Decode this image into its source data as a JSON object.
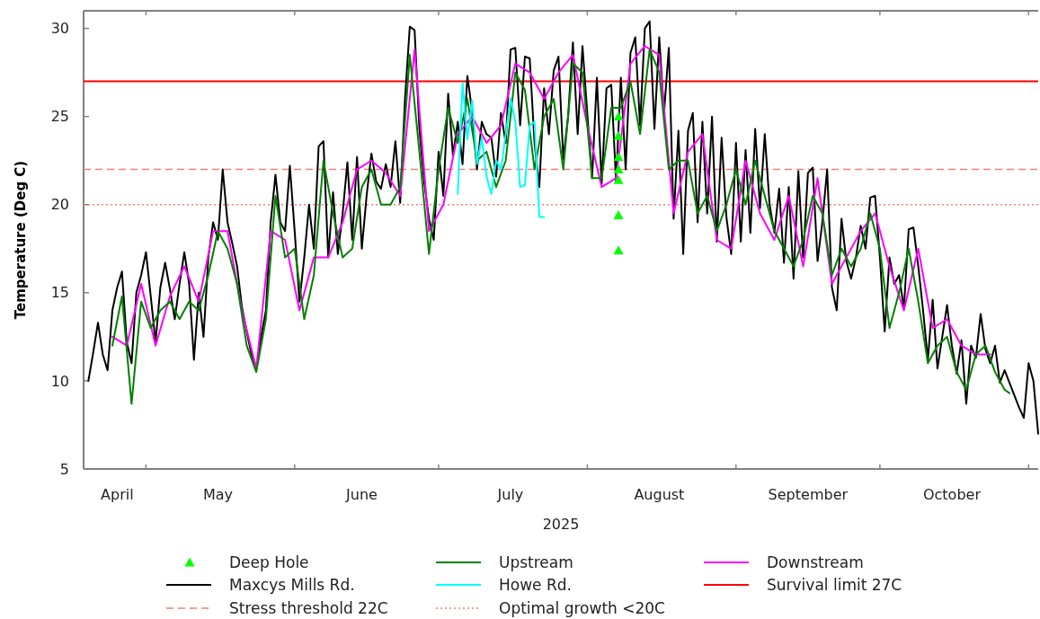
{
  "chart_data": {
    "type": "line",
    "xlabel": "2025",
    "ylabel": "Temperature (Deg C)",
    "xlim": [
      "2025-04-18",
      "2025-11-03"
    ],
    "xticks": [
      {
        "value": "2025-05-01",
        "label": null
      },
      {
        "value": "2025-06-01",
        "label": null
      },
      {
        "value": "2025-07-01",
        "label": null
      },
      {
        "value": "2025-08-01",
        "label": null
      },
      {
        "value": "2025-09-01",
        "label": null
      },
      {
        "value": "2025-10-01",
        "label": null
      },
      {
        "value": "2025-11-01",
        "label": null
      },
      {
        "value": "2025-04-25",
        "label": "April"
      },
      {
        "value": "2025-05-16",
        "label": "May"
      },
      {
        "value": "2025-06-15",
        "label": "June"
      },
      {
        "value": "2025-07-16",
        "label": "July"
      },
      {
        "value": "2025-08-16",
        "label": "August"
      },
      {
        "value": "2025-09-16",
        "label": "September"
      },
      {
        "value": "2025-10-16",
        "label": "October"
      }
    ],
    "ylim": [
      5,
      31
    ],
    "yticks": [
      5,
      10,
      15,
      20,
      25,
      30
    ],
    "grid": false,
    "legend": "bottom",
    "series": [
      {
        "name": "Deep Hole",
        "type": "scatter",
        "marker": "triangle",
        "color": "#00ff00",
        "x": [
          "2025-08-07T12:00",
          "2025-08-07T12:00",
          "2025-08-07T12:00",
          "2025-08-07T12:00",
          "2025-08-07T12:00",
          "2025-08-07T12:00",
          "2025-08-07T12:00"
        ],
        "values": [
          25.0,
          23.9,
          22.7,
          22.0,
          21.4,
          19.4,
          17.4
        ]
      },
      {
        "name": "Upstream",
        "color": "#008000",
        "x": [
          "2025-04-24",
          "2025-04-26",
          "2025-04-28",
          "2025-04-30",
          "2025-05-02",
          "2025-05-04",
          "2025-05-06",
          "2025-05-08",
          "2025-05-10",
          "2025-05-12",
          "2025-05-14",
          "2025-05-16",
          "2025-05-18",
          "2025-05-20",
          "2025-05-22",
          "2025-05-24",
          "2025-05-26",
          "2025-05-28",
          "2025-05-30",
          "2025-06-01",
          "2025-06-03",
          "2025-06-05",
          "2025-06-07",
          "2025-06-09",
          "2025-06-11",
          "2025-06-13",
          "2025-06-15",
          "2025-06-17",
          "2025-06-19",
          "2025-06-21",
          "2025-06-23",
          "2025-06-25",
          "2025-06-27",
          "2025-06-29",
          "2025-07-01",
          "2025-07-03",
          "2025-07-05",
          "2025-07-07",
          "2025-07-09",
          "2025-07-11",
          "2025-07-13",
          "2025-07-15",
          "2025-07-17",
          "2025-07-19",
          "2025-07-21",
          "2025-07-23",
          "2025-07-25",
          "2025-07-27",
          "2025-07-29",
          "2025-07-31",
          "2025-08-02",
          "2025-08-04",
          "2025-08-06",
          "2025-08-08",
          "2025-08-10",
          "2025-08-12",
          "2025-08-14",
          "2025-08-16",
          "2025-08-18",
          "2025-08-20",
          "2025-08-22",
          "2025-08-24",
          "2025-08-26",
          "2025-08-28",
          "2025-08-30",
          "2025-09-01",
          "2025-09-03",
          "2025-09-05",
          "2025-09-07",
          "2025-09-09",
          "2025-09-11",
          "2025-09-13",
          "2025-09-15",
          "2025-09-17",
          "2025-09-19",
          "2025-09-21",
          "2025-09-23",
          "2025-09-25",
          "2025-09-27",
          "2025-09-29",
          "2025-10-01",
          "2025-10-03",
          "2025-10-05",
          "2025-10-07",
          "2025-10-09",
          "2025-10-11",
          "2025-10-13",
          "2025-10-15",
          "2025-10-17",
          "2025-10-19",
          "2025-10-21",
          "2025-10-23",
          "2025-10-25",
          "2025-10-27",
          "2025-10-28"
        ],
        "values": [
          12.0,
          14.8,
          8.7,
          14.5,
          13.0,
          14.0,
          14.5,
          13.5,
          14.5,
          14.0,
          16.0,
          18.5,
          17.5,
          15.5,
          12.0,
          10.5,
          13.5,
          20.5,
          17.0,
          17.5,
          13.5,
          16.0,
          22.5,
          19.5,
          17.0,
          17.5,
          21.0,
          22.0,
          20.0,
          20.0,
          21.0,
          28.5,
          23.0,
          17.2,
          22.0,
          25.5,
          23.5,
          26.0,
          22.5,
          23.0,
          21.0,
          22.5,
          27.5,
          26.5,
          22.0,
          25.0,
          26.0,
          22.0,
          28.0,
          27.5,
          21.5,
          21.5,
          25.5,
          25.5,
          27.0,
          24.0,
          28.8,
          27.5,
          22.0,
          22.5,
          22.5,
          19.5,
          20.5,
          18.5,
          20.0,
          22.0,
          20.0,
          22.5,
          20.5,
          18.5,
          17.5,
          16.5,
          18.0,
          20.5,
          19.5,
          16.0,
          17.5,
          16.5,
          17.5,
          19.5,
          17.5,
          13.0,
          15.0,
          17.5,
          14.5,
          11.0,
          12.0,
          12.5,
          10.5,
          9.5,
          11.5,
          12.0,
          10.5,
          9.5,
          9.3
        ]
      },
      {
        "name": "Downstream",
        "color": "#ff00ff",
        "x": [
          "2025-04-24",
          "2025-04-27",
          "2025-04-30",
          "2025-05-03",
          "2025-05-06",
          "2025-05-09",
          "2025-05-12",
          "2025-05-15",
          "2025-05-18",
          "2025-05-21",
          "2025-05-24",
          "2025-05-27",
          "2025-05-30",
          "2025-06-02",
          "2025-06-05",
          "2025-06-08",
          "2025-06-11",
          "2025-06-14",
          "2025-06-17",
          "2025-06-20",
          "2025-06-23",
          "2025-06-26",
          "2025-06-29",
          "2025-07-02",
          "2025-07-05",
          "2025-07-08",
          "2025-07-11",
          "2025-07-14",
          "2025-07-17",
          "2025-07-20",
          "2025-07-23",
          "2025-07-26",
          "2025-07-29",
          "2025-08-01",
          "2025-08-04",
          "2025-08-07",
          "2025-08-10",
          "2025-08-13",
          "2025-08-16",
          "2025-08-19",
          "2025-08-22",
          "2025-08-25",
          "2025-08-28",
          "2025-08-31",
          "2025-09-03",
          "2025-09-06",
          "2025-09-09",
          "2025-09-12",
          "2025-09-15",
          "2025-09-18",
          "2025-09-21",
          "2025-09-24",
          "2025-09-27",
          "2025-09-30",
          "2025-10-03",
          "2025-10-06",
          "2025-10-09",
          "2025-10-12",
          "2025-10-15",
          "2025-10-18",
          "2025-10-21",
          "2025-10-24"
        ],
        "values": [
          12.5,
          12.0,
          15.5,
          12.0,
          14.8,
          16.5,
          14.5,
          18.5,
          18.5,
          14.0,
          10.7,
          18.5,
          18.0,
          14.0,
          17.0,
          17.0,
          19.0,
          22.0,
          22.5,
          21.8,
          20.5,
          28.8,
          18.5,
          20.0,
          24.0,
          25.0,
          23.5,
          24.5,
          28.0,
          27.5,
          26.0,
          27.5,
          28.5,
          24.5,
          21.0,
          21.5,
          28.0,
          29.0,
          28.5,
          19.5,
          23.0,
          24.0,
          18.0,
          17.5,
          22.5,
          19.5,
          18.0,
          20.5,
          16.5,
          21.5,
          15.5,
          17.0,
          18.5,
          19.5,
          16.5,
          14.0,
          17.5,
          13.0,
          13.5,
          12.0,
          11.5,
          11.5
        ]
      },
      {
        "name": "Maxcys Mills Rd.",
        "color": "#000000",
        "x": [
          "2025-04-19",
          "2025-04-20",
          "2025-04-21",
          "2025-04-22",
          "2025-04-23",
          "2025-04-24",
          "2025-04-25",
          "2025-04-26",
          "2025-04-27",
          "2025-04-28",
          "2025-04-29",
          "2025-04-30",
          "2025-05-01",
          "2025-05-02",
          "2025-05-03",
          "2025-05-04",
          "2025-05-05",
          "2025-05-06",
          "2025-05-07",
          "2025-05-08",
          "2025-05-09",
          "2025-05-10",
          "2025-05-11",
          "2025-05-12",
          "2025-05-13",
          "2025-05-14",
          "2025-05-15",
          "2025-05-16",
          "2025-05-17",
          "2025-05-18",
          "2025-05-19",
          "2025-05-20",
          "2025-05-21",
          "2025-05-22",
          "2025-05-23",
          "2025-05-24",
          "2025-05-25",
          "2025-05-26",
          "2025-05-27",
          "2025-05-28",
          "2025-05-29",
          "2025-05-30",
          "2025-05-31",
          "2025-06-01",
          "2025-06-02",
          "2025-06-03",
          "2025-06-04",
          "2025-06-05",
          "2025-06-06",
          "2025-06-07",
          "2025-06-08",
          "2025-06-09",
          "2025-06-10",
          "2025-06-11",
          "2025-06-12",
          "2025-06-13",
          "2025-06-14",
          "2025-06-15",
          "2025-06-16",
          "2025-06-17",
          "2025-06-18",
          "2025-06-19",
          "2025-06-20",
          "2025-06-21",
          "2025-06-22",
          "2025-06-23",
          "2025-06-24",
          "2025-06-25",
          "2025-06-26",
          "2025-06-27",
          "2025-06-28",
          "2025-06-29",
          "2025-06-30",
          "2025-07-01",
          "2025-07-02",
          "2025-07-03",
          "2025-07-04",
          "2025-07-05",
          "2025-07-06",
          "2025-07-07",
          "2025-07-08",
          "2025-07-09",
          "2025-07-10",
          "2025-07-11",
          "2025-07-12",
          "2025-07-13",
          "2025-07-14",
          "2025-07-15",
          "2025-07-16",
          "2025-07-17",
          "2025-07-18",
          "2025-07-19",
          "2025-07-20",
          "2025-07-21",
          "2025-07-22",
          "2025-07-23",
          "2025-07-24",
          "2025-07-25",
          "2025-07-26",
          "2025-07-27",
          "2025-07-28",
          "2025-07-29",
          "2025-07-30",
          "2025-07-31",
          "2025-08-01",
          "2025-08-02",
          "2025-08-03",
          "2025-08-04",
          "2025-08-05",
          "2025-08-06",
          "2025-08-07",
          "2025-08-08",
          "2025-08-09",
          "2025-08-10",
          "2025-08-11",
          "2025-08-12",
          "2025-08-13",
          "2025-08-14",
          "2025-08-15",
          "2025-08-16",
          "2025-08-17",
          "2025-08-18",
          "2025-08-19",
          "2025-08-20",
          "2025-08-21",
          "2025-08-22",
          "2025-08-23",
          "2025-08-24",
          "2025-08-25",
          "2025-08-26",
          "2025-08-27",
          "2025-08-28",
          "2025-08-29",
          "2025-08-30",
          "2025-08-31",
          "2025-09-01",
          "2025-09-02",
          "2025-09-03",
          "2025-09-04",
          "2025-09-05",
          "2025-09-06",
          "2025-09-07",
          "2025-09-08",
          "2025-09-09",
          "2025-09-10",
          "2025-09-11",
          "2025-09-12",
          "2025-09-13",
          "2025-09-14",
          "2025-09-15",
          "2025-09-16",
          "2025-09-17",
          "2025-09-18",
          "2025-09-19",
          "2025-09-20",
          "2025-09-21",
          "2025-09-22",
          "2025-09-23",
          "2025-09-24",
          "2025-09-25",
          "2025-09-26",
          "2025-09-27",
          "2025-09-28",
          "2025-09-29",
          "2025-09-30",
          "2025-10-01",
          "2025-10-02",
          "2025-10-03",
          "2025-10-04",
          "2025-10-05",
          "2025-10-06",
          "2025-10-07",
          "2025-10-08",
          "2025-10-09",
          "2025-10-10",
          "2025-10-11",
          "2025-10-12",
          "2025-10-13",
          "2025-10-14",
          "2025-10-15",
          "2025-10-16",
          "2025-10-17",
          "2025-10-18",
          "2025-10-19",
          "2025-10-20",
          "2025-10-21",
          "2025-10-22",
          "2025-10-23",
          "2025-10-24",
          "2025-10-25",
          "2025-10-26",
          "2025-10-27",
          "2025-10-28",
          "2025-10-29",
          "2025-10-30",
          "2025-10-31",
          "2025-11-01",
          "2025-11-02",
          "2025-11-03"
        ],
        "values": [
          10.0,
          11.6,
          13.3,
          11.5,
          10.6,
          14.0,
          15.3,
          16.2,
          12.2,
          11.0,
          15.0,
          16.0,
          17.3,
          14.8,
          12.2,
          15.3,
          16.7,
          15.2,
          13.5,
          15.5,
          17.3,
          15.5,
          11.2,
          15.0,
          12.5,
          17.0,
          19.0,
          18.0,
          22.0,
          19.0,
          17.8,
          16.5,
          14.2,
          12.8,
          11.5,
          10.7,
          12.5,
          14.0,
          19.0,
          21.7,
          19.0,
          18.5,
          22.2,
          18.5,
          14.5,
          17.0,
          20.0,
          17.5,
          23.3,
          23.6,
          17.0,
          20.7,
          17.2,
          19.5,
          22.4,
          18.0,
          22.7,
          17.5,
          20.5,
          22.9,
          21.3,
          20.9,
          22.3,
          21.0,
          23.6,
          20.1,
          26.0,
          30.1,
          29.9,
          24.3,
          21.3,
          19.2,
          18.0,
          23.0,
          20.5,
          26.3,
          22.8,
          24.7,
          22.3,
          27.3,
          25.3,
          22.0,
          24.7,
          24.0,
          23.8,
          21.6,
          25.2,
          23.5,
          28.8,
          28.9,
          24.5,
          28.4,
          28.3,
          23.5,
          21.0,
          26.6,
          24.0,
          27.6,
          28.4,
          22.6,
          25.0,
          29.2,
          24.0,
          29.0,
          25.2,
          21.5,
          27.2,
          21.2,
          26.6,
          26.8,
          21.3,
          27.2,
          22.0,
          28.6,
          29.5,
          24.5,
          30.0,
          30.4,
          24.3,
          29.5,
          25.2,
          28.9,
          19.2,
          24.2,
          17.2,
          24.2,
          25.2,
          19.0,
          24.7,
          19.5,
          25.0,
          17.9,
          23.8,
          19.3,
          17.2,
          23.5,
          17.9,
          23.1,
          18.4,
          24.3,
          19.8,
          24.0,
          20.0,
          18.4,
          20.9,
          16.7,
          21.0,
          15.8,
          21.9,
          17.0,
          21.8,
          22.1,
          16.8,
          19.0,
          22.0,
          15.3,
          14.0,
          19.2,
          16.8,
          15.8,
          17.0,
          18.8,
          17.5,
          20.4,
          20.5,
          17.0,
          12.8,
          17.0,
          15.5,
          16.0,
          14.1,
          18.6,
          18.7,
          16.5,
          14.0,
          11.2,
          14.6,
          10.7,
          12.5,
          14.3,
          12.0,
          10.4,
          12.3,
          8.7,
          12.0,
          11.3,
          13.8,
          11.8,
          11.0,
          12.0,
          9.9,
          10.6,
          9.9,
          9.2,
          8.5,
          7.9,
          11.0,
          10.0,
          7.0
        ]
      },
      {
        "name": "Howe Rd.",
        "color": "#00ffff",
        "x": [
          "2025-07-05",
          "2025-07-06",
          "2025-07-07",
          "2025-07-08",
          "2025-07-09",
          "2025-07-10",
          "2025-07-11",
          "2025-07-12",
          "2025-07-13",
          "2025-07-14",
          "2025-07-16",
          "2025-07-17",
          "2025-07-18",
          "2025-07-19",
          "2025-07-20",
          "2025-07-21",
          "2025-07-22",
          "2025-07-23"
        ],
        "values": [
          20.6,
          26.9,
          23.7,
          25.9,
          22.3,
          23.8,
          21.6,
          20.6,
          22.5,
          22.0,
          26.0,
          24.7,
          21.0,
          21.1,
          24.5,
          24.7,
          19.3,
          19.3
        ]
      }
    ],
    "ref_lines": [
      {
        "axis": "y",
        "value": 27,
        "label": "Survival limit 27C",
        "color": "#ff0000",
        "line_style": "solid"
      },
      {
        "axis": "y",
        "value": 22,
        "label": "Stress threshold 22C",
        "color": "#f08070",
        "line_style": "dashed"
      },
      {
        "axis": "y",
        "value": 20,
        "label": "Optimal growth <20C",
        "color": "#f08070",
        "line_style": "dotted"
      }
    ]
  }
}
